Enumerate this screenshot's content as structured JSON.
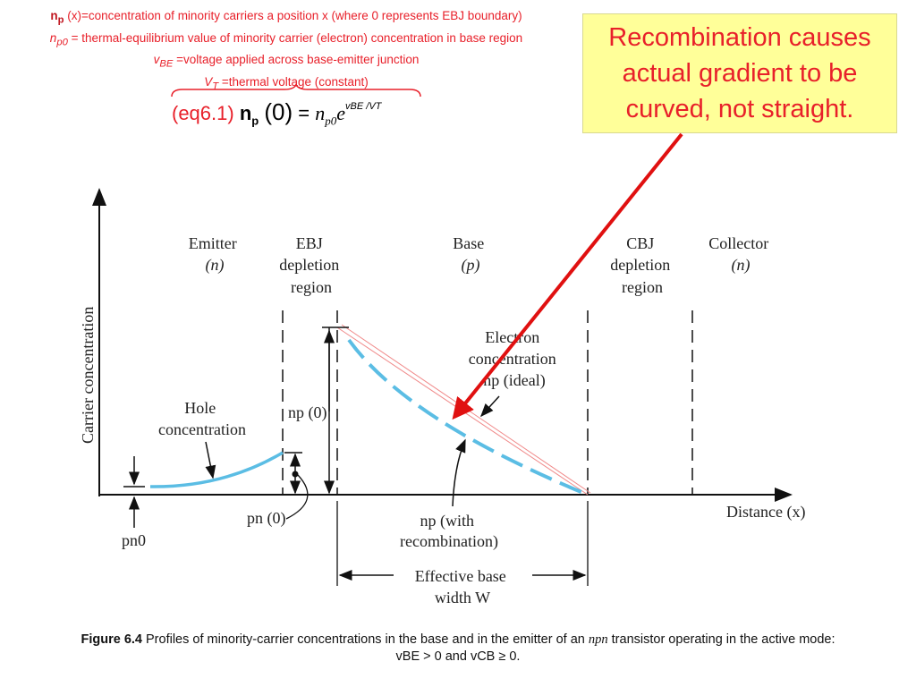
{
  "definitions": {
    "line1_sym": "n",
    "line1_sub": "p",
    "line1_text": " (x)=concentration of minority carriers a position x (where 0 represents EBJ boundary)",
    "line2_sym": "n",
    "line2_sub": "p0",
    "line2_text": " = thermal-equilibrium value of minority carrier (electron) concentration in base region",
    "line3_sym": "v",
    "line3_sub": "BE",
    "line3_text": " =voltage applied across base-emitter junction",
    "line4_sym": "V",
    "line4_sub": "T",
    "line4_text": " =thermal voltage (constant)"
  },
  "equation": {
    "label": "(eq6.1)",
    "lhs": "n",
    "lhs_sub": "p",
    "arg": "(0)",
    "equals": "=",
    "rhs": "n",
    "rhs_sub": "p0",
    "e": "e",
    "exponent": "vBE /VT"
  },
  "callout": {
    "line1": "Recombination causes",
    "line2": "actual gradient to be",
    "line3": "curved, not straight.",
    "color": "#e8202a",
    "background": "#ffff99"
  },
  "figure": {
    "y_axis_label": "Carrier concentration",
    "x_axis_label": "Distance (x)",
    "regions": {
      "emitter": [
        "Emitter",
        "(n)"
      ],
      "ebj": [
        "EBJ",
        "depletion",
        "region"
      ],
      "base": [
        "Base",
        "(p)"
      ],
      "cbj": [
        "CBJ",
        "depletion",
        "region"
      ],
      "collector": [
        "Collector",
        "(n)"
      ]
    },
    "labels": {
      "electron": [
        "Electron",
        "concentration",
        "np (ideal)"
      ],
      "hole": [
        "Hole",
        "concentration"
      ],
      "np0_marker": "np (0)",
      "pn0_marker": "pn (0)",
      "pn0_eq": "pn0",
      "recomb": [
        "np (with",
        "recombination)"
      ],
      "width": [
        "Effective base",
        "width W"
      ]
    },
    "curve_color": "#5bbde4",
    "arrow_color": "#e01010"
  },
  "caption": {
    "bold": "Figure 6.4",
    "text1": " Profiles of minority-carrier concentrations in the base and in the emitter of an ",
    "npn": "npn",
    "text2": " transistor operating in the active mode:",
    "line2": "vBE > 0 and vCB ≥ 0."
  }
}
